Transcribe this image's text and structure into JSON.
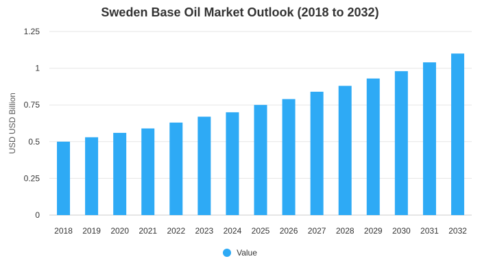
{
  "chart_data": {
    "type": "bar",
    "title": "Sweden Base Oil Market Outlook (2018 to 2032)",
    "xlabel": "",
    "ylabel": "USD USD Billion",
    "categories": [
      "2018",
      "2019",
      "2020",
      "2021",
      "2022",
      "2023",
      "2024",
      "2025",
      "2026",
      "2027",
      "2028",
      "2029",
      "2030",
      "2031",
      "2032"
    ],
    "series": [
      {
        "name": "Value",
        "color": "#2eaaf5",
        "values": [
          0.5,
          0.53,
          0.56,
          0.59,
          0.63,
          0.67,
          0.7,
          0.75,
          0.79,
          0.84,
          0.88,
          0.93,
          0.98,
          1.04,
          1.1
        ]
      }
    ],
    "ylim": [
      0,
      1.25
    ],
    "yticks": [
      0,
      0.25,
      0.5,
      0.75,
      1,
      1.25
    ],
    "ytick_labels": [
      "0",
      "0.25",
      "0.5",
      "0.75",
      "1",
      "1.25"
    ],
    "grid": true,
    "legend_position": "bottom"
  }
}
